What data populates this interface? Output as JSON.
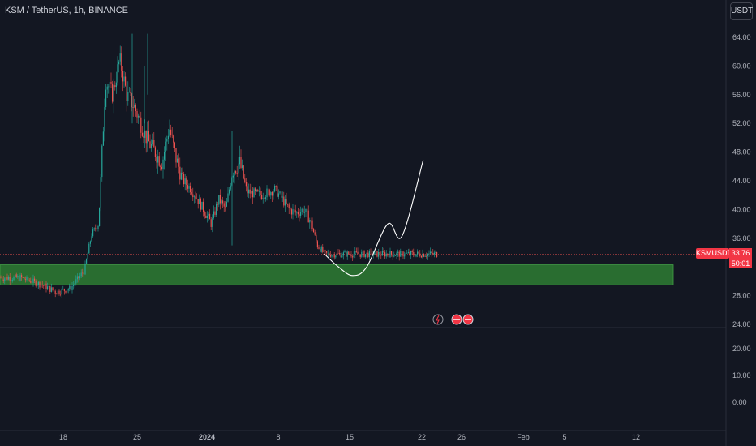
{
  "header": {
    "title": "KSM / TetherUS, 1h, BINANCE",
    "currency_button": "USDT"
  },
  "price_scale": {
    "labels": [
      "64.00",
      "60.00",
      "56.00",
      "52.00",
      "48.00",
      "44.00",
      "40.00",
      "36.00",
      "28.00",
      "24.00",
      "20.00",
      "10.00",
      "0.00"
    ]
  },
  "time_scale": {
    "labels": [
      "18",
      "25",
      "2024",
      "8",
      "15",
      "22",
      "26",
      "Feb",
      "5",
      "12"
    ]
  },
  "last_price": {
    "ticker": "KSMUSDT",
    "price": "33.76",
    "countdown": "50:01"
  },
  "colors": {
    "background": "#131722",
    "up": "#26a69a",
    "down": "#ef5350",
    "zone": "#2e7d32",
    "forecast": "#ffffff",
    "badge": "#f23645"
  },
  "chart_data": {
    "type": "candlestick",
    "symbol": "KSM / TetherUS",
    "interval": "1h",
    "exchange": "BINANCE",
    "ylim": [
      0,
      66
    ],
    "x_ticks": [
      "18",
      "25",
      "2024",
      "8",
      "15",
      "22",
      "26",
      "Feb",
      "5",
      "12"
    ],
    "path_keypoints": [
      {
        "t": "Dec 12",
        "price": 30.5
      },
      {
        "t": "Dec 15",
        "price": 29.5
      },
      {
        "t": "Dec 17",
        "price": 28.5
      },
      {
        "t": "Dec 19",
        "price": 29.0
      },
      {
        "t": "Dec 21",
        "price": 31.5
      },
      {
        "t": "Dec 22",
        "price": 36.5
      },
      {
        "t": "Dec 23",
        "price": 38.0
      },
      {
        "t": "Dec 24",
        "price": 58.0
      },
      {
        "t": "Dec 25",
        "price": 56.0
      },
      {
        "t": "Dec 26",
        "price": 61.0
      },
      {
        "t": "Dec 27",
        "price": 56.0
      },
      {
        "t": "Dec 28",
        "price": 54.5
      },
      {
        "t": "Dec 30",
        "price": 49.5
      },
      {
        "t": "Jan 1",
        "price": 46.5
      },
      {
        "t": "Jan 2",
        "price": 51.5
      },
      {
        "t": "Jan 3",
        "price": 47.0
      },
      {
        "t": "Jan 4",
        "price": 44.0
      },
      {
        "t": "Jan 5",
        "price": 43.0
      },
      {
        "t": "Jan 6",
        "price": 41.5
      },
      {
        "t": "Jan 8",
        "price": 38.0
      },
      {
        "t": "Jan 9",
        "price": 41.5
      },
      {
        "t": "Jan 10",
        "price": 40.0
      },
      {
        "t": "Jan 11",
        "price": 45.5
      },
      {
        "t": "Jan 12",
        "price": 46.5
      },
      {
        "t": "Jan 13",
        "price": 42.5
      },
      {
        "t": "Jan 15",
        "price": 42.0
      },
      {
        "t": "Jan 17",
        "price": 42.8
      },
      {
        "t": "Jan 18",
        "price": 41.5
      },
      {
        "t": "Jan 19",
        "price": 40.0
      },
      {
        "t": "Jan 20",
        "price": 39.5
      },
      {
        "t": "Jan 21",
        "price": 40.0
      },
      {
        "t": "Jan 22",
        "price": 38.5
      },
      {
        "t": "Jan 23",
        "price": 35.0
      },
      {
        "t": "Jan 24",
        "price": 33.8
      }
    ],
    "zone": {
      "low": 29.5,
      "high": 32.3
    },
    "current_price": 33.76,
    "forecast_path": [
      {
        "t": "Jan 24",
        "price": 33.8
      },
      {
        "t": "Jan 26",
        "price": 32.0
      },
      {
        "t": "Jan 28",
        "price": 30.8
      },
      {
        "t": "Jan 30",
        "price": 32.0
      },
      {
        "t": "Feb 2",
        "price": 38.0
      },
      {
        "t": "Feb 4",
        "price": 36.3
      },
      {
        "t": "Feb 7",
        "price": 46.9
      }
    ]
  }
}
